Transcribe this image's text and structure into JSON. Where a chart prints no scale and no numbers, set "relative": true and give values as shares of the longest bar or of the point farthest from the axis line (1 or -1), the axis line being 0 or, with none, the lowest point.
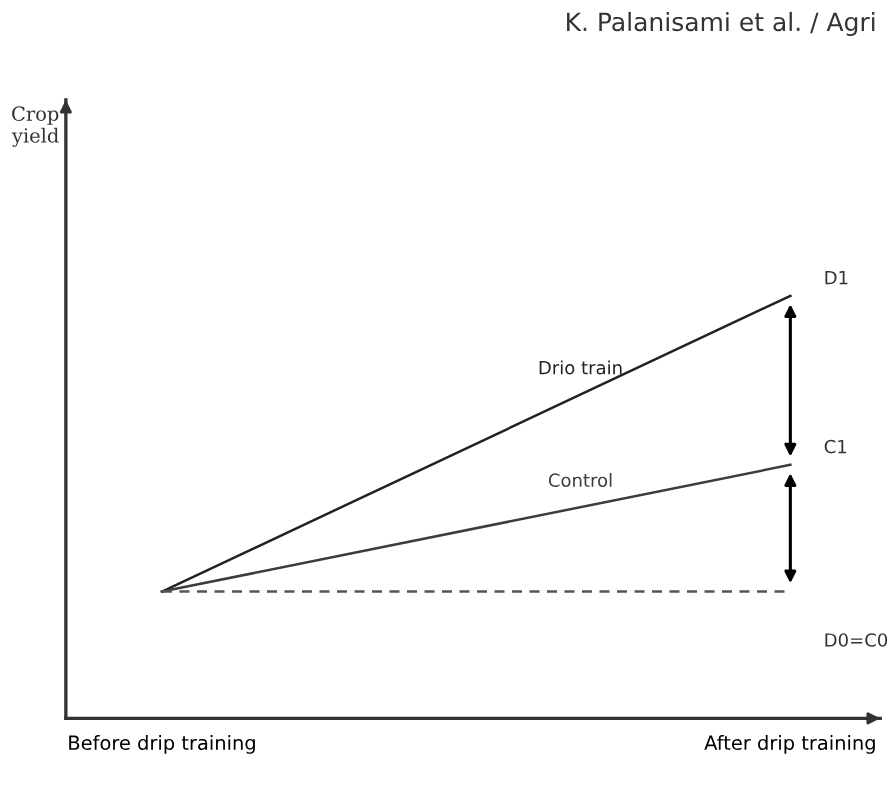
{
  "chart_data": {
    "type": "line",
    "relative": true,
    "categories": [
      "Before drip training",
      "After drip training"
    ],
    "series": [
      {
        "name": "Drio train",
        "color": "#222222",
        "values": [
          0.3,
          1
        ]
      },
      {
        "name": "Control",
        "color": "#3c3c3c",
        "values": [
          0.3,
          0.6
        ]
      },
      {
        "color": "#555555",
        "values": [
          0.3,
          0.3
        ],
        "line_style": "dashed"
      }
    ],
    "annotations": [
      "D1",
      "C1",
      "D0=C0",
      "K. Palanisami et al. / Agri",
      "Crop\nyield"
    ],
    "grid": false,
    "legend": false,
    "marker": "none",
    "line_style": "solid"
  }
}
